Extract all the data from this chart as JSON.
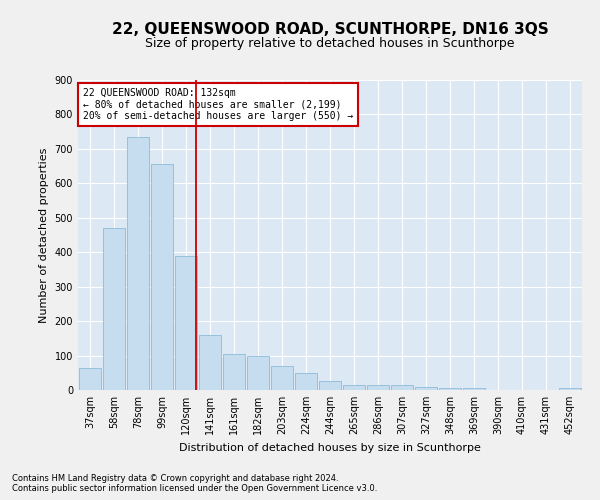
{
  "title": "22, QUEENSWOOD ROAD, SCUNTHORPE, DN16 3QS",
  "subtitle": "Size of property relative to detached houses in Scunthorpe",
  "xlabel": "Distribution of detached houses by size in Scunthorpe",
  "ylabel": "Number of detached properties",
  "footnote1": "Contains HM Land Registry data © Crown copyright and database right 2024.",
  "footnote2": "Contains public sector information licensed under the Open Government Licence v3.0.",
  "categories": [
    "37sqm",
    "58sqm",
    "78sqm",
    "99sqm",
    "120sqm",
    "141sqm",
    "161sqm",
    "182sqm",
    "203sqm",
    "224sqm",
    "244sqm",
    "265sqm",
    "286sqm",
    "307sqm",
    "327sqm",
    "348sqm",
    "369sqm",
    "390sqm",
    "410sqm",
    "431sqm",
    "452sqm"
  ],
  "values": [
    65,
    470,
    735,
    655,
    390,
    160,
    105,
    100,
    70,
    50,
    25,
    15,
    15,
    15,
    10,
    5,
    5,
    0,
    0,
    0,
    5
  ],
  "bar_color": "#c6dcef",
  "bar_edge_color": "#7fb3d3",
  "highlight_color": "#cc0000",
  "property_label": "22 QUEENSWOOD ROAD: 132sqm",
  "annotation_line1": "← 80% of detached houses are smaller (2,199)",
  "annotation_line2": "20% of semi-detached houses are larger (550) →",
  "annotation_box_color": "#ffffff",
  "annotation_box_edge_color": "#cc0000",
  "ylim": [
    0,
    900
  ],
  "yticks": [
    0,
    100,
    200,
    300,
    400,
    500,
    600,
    700,
    800,
    900
  ],
  "background_color": "#dce9f5",
  "fig_background_color": "#f0f0f0",
  "grid_color": "#ffffff",
  "title_fontsize": 11,
  "subtitle_fontsize": 9,
  "axis_label_fontsize": 8,
  "tick_fontsize": 7,
  "annotation_fontsize": 7,
  "footnote_fontsize": 6
}
